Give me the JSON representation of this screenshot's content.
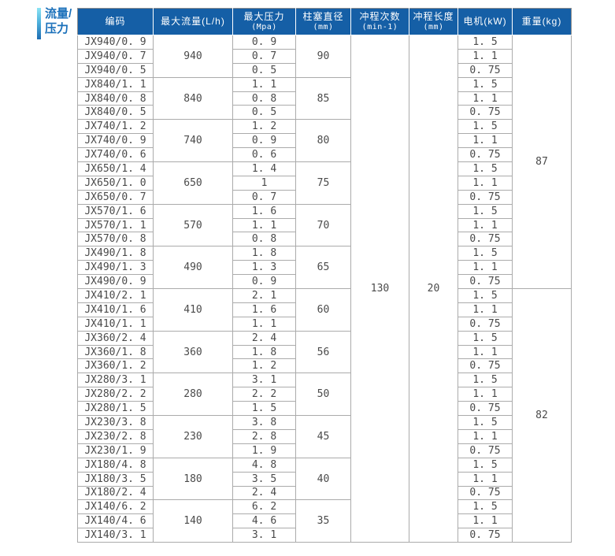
{
  "label": {
    "line1": "流量/",
    "line2": "压力",
    "text_color": "#1a70ba",
    "bar_gradient": [
      "#8ce4f4",
      "#1e6cb2"
    ]
  },
  "table": {
    "colors": {
      "header_bg": "#155fa6",
      "header_text": "#ffffff",
      "body_text": "#4a4a4a",
      "row_border": "#ababab",
      "group_border": "#8a8a8a"
    },
    "header": {
      "code": "编码",
      "max_flow": "最大流量(L/h)",
      "max_pressure_line1": "最大压力",
      "max_pressure_line2": "(Mpa)",
      "plunger_diameter_line1": "柱塞直径",
      "plunger_diameter_line2": "(mm)",
      "stroke_count_line1": "冲程次数",
      "stroke_count_line2": "(min-1)",
      "stroke_length_line1": "冲程长度",
      "stroke_length_line2": "(mm)",
      "motor": "电机(kW)",
      "weight": "重量(kg)"
    },
    "stroke_count": "130",
    "stroke_length": "20",
    "weights": [
      "87",
      "82"
    ],
    "groups": [
      {
        "flow": "940",
        "diameter": "90",
        "rows": [
          {
            "code": "JX940/0. 9",
            "pressure": "0. 9",
            "motor": "1. 5"
          },
          {
            "code": "JX940/0. 7",
            "pressure": "0. 7",
            "motor": "1. 1"
          },
          {
            "code": "JX940/0. 5",
            "pressure": "0. 5",
            "motor": "0. 75"
          }
        ]
      },
      {
        "flow": "840",
        "diameter": "85",
        "rows": [
          {
            "code": "JX840/1. 1",
            "pressure": "1. 1",
            "motor": "1. 5"
          },
          {
            "code": "JX840/0. 8",
            "pressure": "0. 8",
            "motor": "1. 1"
          },
          {
            "code": "JX840/0. 5",
            "pressure": "0. 5",
            "motor": "0. 75"
          }
        ]
      },
      {
        "flow": "740",
        "diameter": "80",
        "rows": [
          {
            "code": "JX740/1. 2",
            "pressure": "1. 2",
            "motor": "1. 5"
          },
          {
            "code": "JX740/0. 9",
            "pressure": "0. 9",
            "motor": "1. 1"
          },
          {
            "code": "JX740/0. 6",
            "pressure": "0. 6",
            "motor": "0. 75"
          }
        ]
      },
      {
        "flow": "650",
        "diameter": "75",
        "rows": [
          {
            "code": "JX650/1. 4",
            "pressure": "1. 4",
            "motor": "1. 5"
          },
          {
            "code": "JX650/1. 0",
            "pressure": "1",
            "motor": "1. 1"
          },
          {
            "code": "JX650/0. 7",
            "pressure": "0. 7",
            "motor": "0. 75"
          }
        ]
      },
      {
        "flow": "570",
        "diameter": "70",
        "rows": [
          {
            "code": "JX570/1. 6",
            "pressure": "1. 6",
            "motor": "1. 5"
          },
          {
            "code": "JX570/1. 1",
            "pressure": "1. 1",
            "motor": "1. 1"
          },
          {
            "code": "JX570/0. 8",
            "pressure": "0. 8",
            "motor": "0. 75"
          }
        ]
      },
      {
        "flow": "490",
        "diameter": "65",
        "rows": [
          {
            "code": "JX490/1. 8",
            "pressure": "1. 8",
            "motor": "1. 5"
          },
          {
            "code": "JX490/1. 3",
            "pressure": "1. 3",
            "motor": "1. 1"
          },
          {
            "code": "JX490/0. 9",
            "pressure": "0. 9",
            "motor": "0. 75"
          }
        ]
      },
      {
        "flow": "410",
        "diameter": "60",
        "rows": [
          {
            "code": "JX410/2. 1",
            "pressure": "2. 1",
            "motor": "1. 5"
          },
          {
            "code": "JX410/1. 6",
            "pressure": "1. 6",
            "motor": "1. 1"
          },
          {
            "code": "JX410/1. 1",
            "pressure": "1. 1",
            "motor": "0. 75"
          }
        ]
      },
      {
        "flow": "360",
        "diameter": "56",
        "rows": [
          {
            "code": "JX360/2. 4",
            "pressure": "2. 4",
            "motor": "1. 5"
          },
          {
            "code": "JX360/1. 8",
            "pressure": "1. 8",
            "motor": "1. 1"
          },
          {
            "code": "JX360/1. 2",
            "pressure": "1. 2",
            "motor": "0. 75"
          }
        ]
      },
      {
        "flow": "280",
        "diameter": "50",
        "rows": [
          {
            "code": "JX280/3. 1",
            "pressure": "3. 1",
            "motor": "1. 5"
          },
          {
            "code": "JX280/2. 2",
            "pressure": "2. 2",
            "motor": "1. 1"
          },
          {
            "code": "JX280/1. 5",
            "pressure": "1. 5",
            "motor": "0. 75"
          }
        ]
      },
      {
        "flow": "230",
        "diameter": "45",
        "rows": [
          {
            "code": "JX230/3. 8",
            "pressure": "3. 8",
            "motor": "1. 5"
          },
          {
            "code": "JX230/2. 8",
            "pressure": "2. 8",
            "motor": "1. 1"
          },
          {
            "code": "JX230/1. 9",
            "pressure": "1. 9",
            "motor": "0. 75"
          }
        ]
      },
      {
        "flow": "180",
        "diameter": "40",
        "rows": [
          {
            "code": "JX180/4. 8",
            "pressure": "4. 8",
            "motor": "1. 5"
          },
          {
            "code": "JX180/3. 5",
            "pressure": "3. 5",
            "motor": "1. 1"
          },
          {
            "code": "JX180/2. 4",
            "pressure": "2. 4",
            "motor": "0. 75"
          }
        ]
      },
      {
        "flow": "140",
        "diameter": "35",
        "rows": [
          {
            "code": "JX140/6. 2",
            "pressure": "6. 2",
            "motor": "1. 5"
          },
          {
            "code": "JX140/4. 6",
            "pressure": "4. 6",
            "motor": "1. 1"
          },
          {
            "code": "JX140/3. 1",
            "pressure": "3. 1",
            "motor": "0. 75"
          }
        ]
      }
    ]
  }
}
